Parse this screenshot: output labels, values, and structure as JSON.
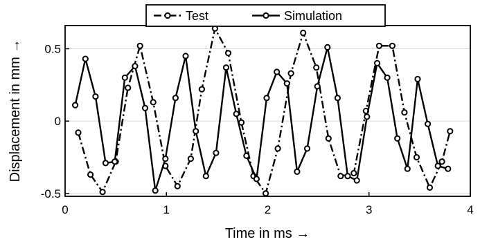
{
  "chart_data": {
    "type": "line",
    "xlabel": "Time in ms →",
    "ylabel": "Displacement in mm →",
    "xlim": [
      0,
      4
    ],
    "ylim": [
      -0.52,
      0.66
    ],
    "xticks": [
      0,
      1,
      2,
      3,
      4
    ],
    "xtick_labels": [
      "0",
      "1",
      "2",
      "3",
      "4"
    ],
    "yticks": [
      -0.5,
      0,
      0.5
    ],
    "ytick_labels": [
      "-0.5",
      "0",
      "0.5"
    ],
    "grid": "horizontal",
    "legend_position": "top-center",
    "series": [
      {
        "name": "Test",
        "style": "dash-dot",
        "marker": "open-circle",
        "color": "#000000",
        "x": [
          0.13,
          0.25,
          0.37,
          0.5,
          0.62,
          0.74,
          0.87,
          0.99,
          1.11,
          1.24,
          1.35,
          1.48,
          1.61,
          1.74,
          1.86,
          1.98,
          2.1,
          2.23,
          2.35,
          2.48,
          2.6,
          2.72,
          2.85,
          2.97,
          3.1,
          3.23,
          3.35,
          3.47,
          3.6,
          3.72,
          3.8
        ],
        "y": [
          -0.08,
          -0.37,
          -0.49,
          -0.28,
          0.23,
          0.52,
          0.13,
          -0.31,
          -0.45,
          -0.26,
          0.22,
          0.64,
          0.47,
          -0.01,
          -0.38,
          -0.5,
          -0.19,
          0.33,
          0.61,
          0.37,
          -0.12,
          -0.38,
          -0.36,
          0.07,
          0.52,
          0.52,
          0.06,
          -0.25,
          -0.46,
          -0.28,
          -0.07
        ]
      },
      {
        "name": "Simulation",
        "style": "solid",
        "marker": "open-circle",
        "color": "#000000",
        "x": [
          0.1,
          0.2,
          0.3,
          0.4,
          0.49,
          0.59,
          0.69,
          0.79,
          0.89,
          0.99,
          1.09,
          1.19,
          1.29,
          1.39,
          1.49,
          1.59,
          1.69,
          1.79,
          1.89,
          1.99,
          2.09,
          2.19,
          2.29,
          2.39,
          2.49,
          2.59,
          2.69,
          2.79,
          2.88,
          2.98,
          3.08,
          3.18,
          3.28,
          3.38,
          3.48,
          3.58,
          3.68,
          3.78
        ],
        "y": [
          0.11,
          0.43,
          0.17,
          -0.29,
          -0.28,
          0.3,
          0.38,
          0.09,
          -0.48,
          -0.26,
          0.16,
          0.45,
          -0.07,
          -0.38,
          -0.22,
          0.37,
          0.05,
          -0.24,
          -0.4,
          0.16,
          0.34,
          0.26,
          -0.35,
          -0.19,
          0.24,
          0.51,
          0.16,
          -0.38,
          -0.41,
          0.03,
          0.4,
          0.3,
          -0.12,
          -0.33,
          0.29,
          -0.02,
          -0.31,
          -0.33
        ]
      }
    ]
  }
}
